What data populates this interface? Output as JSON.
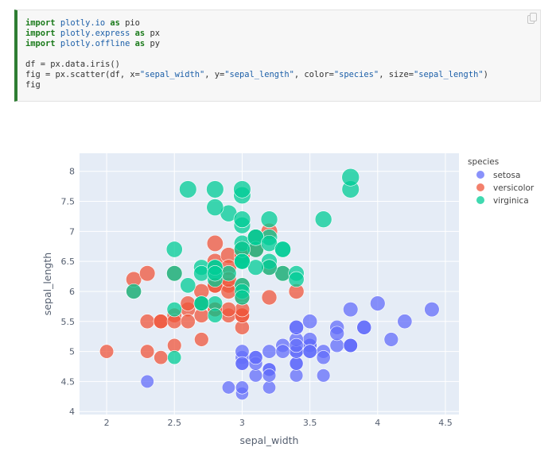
{
  "code_cell": {
    "lines": [
      [
        {
          "t": "import",
          "c": "kw"
        },
        {
          "t": " "
        },
        {
          "t": "plotly.io",
          "c": "mod"
        },
        {
          "t": " "
        },
        {
          "t": "as",
          "c": "kw"
        },
        {
          "t": " pio"
        }
      ],
      [
        {
          "t": "import",
          "c": "kw"
        },
        {
          "t": " "
        },
        {
          "t": "plotly.express",
          "c": "mod"
        },
        {
          "t": " "
        },
        {
          "t": "as",
          "c": "kw"
        },
        {
          "t": " px"
        }
      ],
      [
        {
          "t": "import",
          "c": "kw"
        },
        {
          "t": " "
        },
        {
          "t": "plotly.offline",
          "c": "mod"
        },
        {
          "t": " "
        },
        {
          "t": "as",
          "c": "kw"
        },
        {
          "t": " py"
        }
      ],
      [],
      [
        {
          "t": "df = px.data.iris()"
        }
      ],
      [
        {
          "t": "fig = px.scatter(df, x="
        },
        {
          "t": "\"sepal_width\"",
          "c": "str"
        },
        {
          "t": ", y="
        },
        {
          "t": "\"sepal_length\"",
          "c": "str"
        },
        {
          "t": ", color="
        },
        {
          "t": "\"species\"",
          "c": "str"
        },
        {
          "t": ", size="
        },
        {
          "t": "\"sepal_length\"",
          "c": "str"
        },
        {
          "t": ")"
        }
      ],
      [
        {
          "t": "fig"
        }
      ]
    ],
    "copy_icon": "copy-icon"
  },
  "chart_data": {
    "type": "scatter",
    "xlabel": "sepal_width",
    "ylabel": "sepal_length",
    "xlim": [
      1.8,
      4.6
    ],
    "ylim": [
      3.95,
      8.3
    ],
    "x_ticks": [
      "2",
      "2.5",
      "3",
      "3.5",
      "4",
      "4.5"
    ],
    "y_ticks": [
      "4",
      "4.5",
      "5",
      "5.5",
      "6",
      "6.5",
      "7",
      "7.5",
      "8"
    ],
    "grid": true,
    "legend_position": "top-right",
    "legend_title": "species",
    "series": [
      {
        "name": "setosa",
        "color": "#636efa",
        "points": [
          [
            3.5,
            5.1
          ],
          [
            3.0,
            4.9
          ],
          [
            3.2,
            4.7
          ],
          [
            3.1,
            4.6
          ],
          [
            3.6,
            5.0
          ],
          [
            3.9,
            5.4
          ],
          [
            3.4,
            4.6
          ],
          [
            3.4,
            5.0
          ],
          [
            2.9,
            4.4
          ],
          [
            3.1,
            4.9
          ],
          [
            3.7,
            5.4
          ],
          [
            3.4,
            4.8
          ],
          [
            3.0,
            4.8
          ],
          [
            3.0,
            4.3
          ],
          [
            4.0,
            5.8
          ],
          [
            4.4,
            5.7
          ],
          [
            3.9,
            5.4
          ],
          [
            3.5,
            5.1
          ],
          [
            3.8,
            5.7
          ],
          [
            3.8,
            5.1
          ],
          [
            3.4,
            5.4
          ],
          [
            3.7,
            5.1
          ],
          [
            3.6,
            4.6
          ],
          [
            3.3,
            5.1
          ],
          [
            3.4,
            4.8
          ],
          [
            3.0,
            5.0
          ],
          [
            3.4,
            5.0
          ],
          [
            3.5,
            5.2
          ],
          [
            3.4,
            5.2
          ],
          [
            3.2,
            4.7
          ],
          [
            3.1,
            4.8
          ],
          [
            3.4,
            5.4
          ],
          [
            4.1,
            5.2
          ],
          [
            4.2,
            5.5
          ],
          [
            3.1,
            4.9
          ],
          [
            3.2,
            5.0
          ],
          [
            3.5,
            5.5
          ],
          [
            3.6,
            4.9
          ],
          [
            3.0,
            4.4
          ],
          [
            3.4,
            5.1
          ],
          [
            3.5,
            5.0
          ],
          [
            2.3,
            4.5
          ],
          [
            3.2,
            4.4
          ],
          [
            3.5,
            5.0
          ],
          [
            3.8,
            5.1
          ],
          [
            3.0,
            4.8
          ],
          [
            3.8,
            5.1
          ],
          [
            3.2,
            4.6
          ],
          [
            3.7,
            5.3
          ],
          [
            3.3,
            5.0
          ]
        ]
      },
      {
        "name": "versicolor",
        "color": "#ef553b",
        "points": [
          [
            3.2,
            7.0
          ],
          [
            3.2,
            6.4
          ],
          [
            3.1,
            6.9
          ],
          [
            2.3,
            5.5
          ],
          [
            2.8,
            6.5
          ],
          [
            2.8,
            5.7
          ],
          [
            3.3,
            6.3
          ],
          [
            2.4,
            4.9
          ],
          [
            2.9,
            6.6
          ],
          [
            2.7,
            5.2
          ],
          [
            2.0,
            5.0
          ],
          [
            3.0,
            5.9
          ],
          [
            2.2,
            6.0
          ],
          [
            2.9,
            6.1
          ],
          [
            2.9,
            5.6
          ],
          [
            3.1,
            6.7
          ],
          [
            3.0,
            5.6
          ],
          [
            2.7,
            5.8
          ],
          [
            2.2,
            6.2
          ],
          [
            2.5,
            5.6
          ],
          [
            3.2,
            5.9
          ],
          [
            2.8,
            6.1
          ],
          [
            2.5,
            6.3
          ],
          [
            2.8,
            6.1
          ],
          [
            2.9,
            6.4
          ],
          [
            3.0,
            6.6
          ],
          [
            2.8,
            6.8
          ],
          [
            3.0,
            6.7
          ],
          [
            2.9,
            6.0
          ],
          [
            2.6,
            5.7
          ],
          [
            2.4,
            5.5
          ],
          [
            2.4,
            5.5
          ],
          [
            2.7,
            5.8
          ],
          [
            2.7,
            6.0
          ],
          [
            3.0,
            5.4
          ],
          [
            3.4,
            6.0
          ],
          [
            3.1,
            6.7
          ],
          [
            2.3,
            6.3
          ],
          [
            3.0,
            5.6
          ],
          [
            2.5,
            5.5
          ],
          [
            2.6,
            5.5
          ],
          [
            3.0,
            6.1
          ],
          [
            2.6,
            5.8
          ],
          [
            2.3,
            5.0
          ],
          [
            2.7,
            5.6
          ],
          [
            3.0,
            5.7
          ],
          [
            2.9,
            5.7
          ],
          [
            2.9,
            6.2
          ],
          [
            2.5,
            5.1
          ],
          [
            2.8,
            5.7
          ]
        ]
      },
      {
        "name": "virginica",
        "color": "#00cc96",
        "points": [
          [
            3.3,
            6.3
          ],
          [
            2.7,
            5.8
          ],
          [
            3.0,
            7.1
          ],
          [
            2.9,
            6.3
          ],
          [
            3.0,
            6.5
          ],
          [
            3.0,
            7.6
          ],
          [
            2.5,
            4.9
          ],
          [
            2.9,
            7.3
          ],
          [
            2.5,
            6.7
          ],
          [
            3.6,
            7.2
          ],
          [
            3.2,
            6.5
          ],
          [
            2.7,
            6.4
          ],
          [
            3.0,
            6.8
          ],
          [
            2.5,
            5.7
          ],
          [
            2.8,
            5.8
          ],
          [
            3.2,
            6.4
          ],
          [
            3.0,
            6.5
          ],
          [
            3.8,
            7.7
          ],
          [
            2.6,
            7.7
          ],
          [
            2.2,
            6.0
          ],
          [
            3.2,
            6.9
          ],
          [
            2.8,
            5.6
          ],
          [
            2.8,
            7.7
          ],
          [
            2.7,
            6.3
          ],
          [
            3.3,
            6.7
          ],
          [
            3.2,
            7.2
          ],
          [
            2.8,
            6.2
          ],
          [
            3.0,
            6.1
          ],
          [
            2.8,
            6.4
          ],
          [
            3.0,
            7.2
          ],
          [
            2.8,
            7.4
          ],
          [
            3.8,
            7.9
          ],
          [
            2.8,
            6.4
          ],
          [
            2.8,
            6.3
          ],
          [
            2.6,
            6.1
          ],
          [
            3.0,
            7.7
          ],
          [
            3.4,
            6.3
          ],
          [
            3.1,
            6.4
          ],
          [
            3.0,
            6.0
          ],
          [
            3.1,
            6.9
          ],
          [
            3.1,
            6.7
          ],
          [
            3.1,
            6.9
          ],
          [
            2.7,
            5.8
          ],
          [
            3.2,
            6.8
          ],
          [
            3.3,
            6.7
          ],
          [
            3.0,
            6.7
          ],
          [
            2.5,
            6.3
          ],
          [
            3.0,
            6.5
          ],
          [
            3.4,
            6.2
          ],
          [
            3.0,
            5.9
          ]
        ]
      }
    ]
  }
}
